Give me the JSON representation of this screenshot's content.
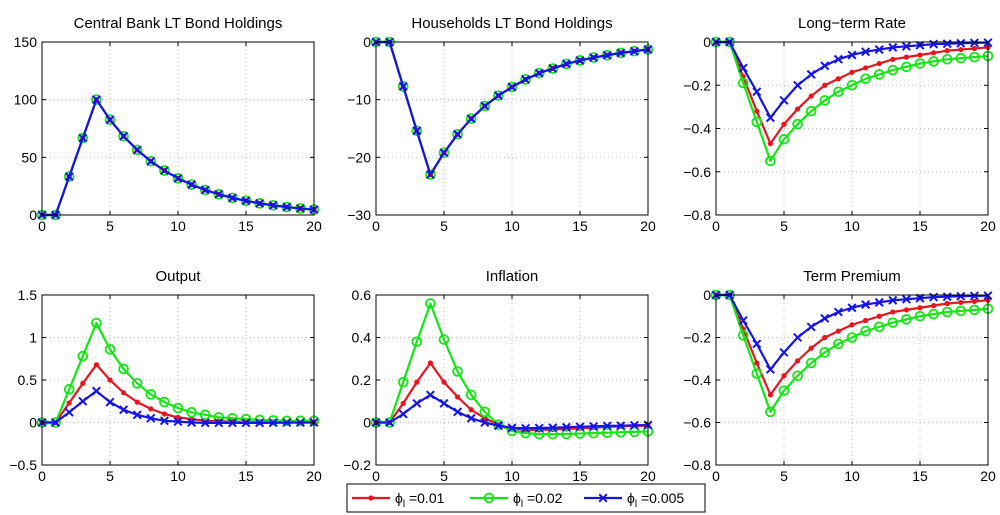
{
  "colors": {
    "series_a": "#e8141e",
    "series_b": "#14e614",
    "series_c": "#1414e6",
    "grid": "#bdbdbd",
    "axis": "#000000",
    "background": "#ffffff"
  },
  "legend": {
    "placement": "bottom-center",
    "entries": [
      {
        "label": "ϕ",
        "subscript": "l",
        "value_text": "=0.01",
        "marker": "dot",
        "color": "#e8141e"
      },
      {
        "label": "ϕ",
        "subscript": "l",
        "value_text": "=0.02",
        "marker": "circle",
        "color": "#14e614"
      },
      {
        "label": "ϕ",
        "subscript": "l",
        "value_text": "=0.005",
        "marker": "x",
        "color": "#1414e6"
      }
    ]
  },
  "chart_data": [
    {
      "type": "line",
      "title": "Central Bank LT Bond Holdings",
      "xlabel": "",
      "ylabel": "",
      "xlim": [
        0,
        20
      ],
      "ylim": [
        0,
        150
      ],
      "grid": true,
      "xticks": [
        0,
        5,
        10,
        15,
        20
      ],
      "yticks": [
        0,
        50,
        100,
        150
      ],
      "yticklabels": [
        "0",
        "50",
        "100",
        "150"
      ],
      "x": [
        0,
        1,
        2,
        3,
        4,
        5,
        6,
        7,
        8,
        9,
        10,
        11,
        12,
        13,
        14,
        15,
        16,
        17,
        18,
        19,
        20
      ],
      "series": [
        {
          "marker": "dot",
          "color": "#e8141e",
          "values": [
            0,
            0,
            33.3,
            66.7,
            100,
            82.6,
            68.3,
            56.4,
            46.6,
            38.5,
            31.8,
            26.3,
            21.7,
            18,
            14.8,
            12.3,
            10.1,
            8.4,
            6.9,
            5.7,
            4.7
          ]
        },
        {
          "marker": "circle",
          "color": "#14e614",
          "values": [
            0,
            0,
            33.3,
            66.7,
            100,
            82.6,
            68.3,
            56.4,
            46.6,
            38.5,
            31.8,
            26.3,
            21.7,
            18,
            14.8,
            12.3,
            10.1,
            8.4,
            6.9,
            5.7,
            4.7
          ]
        },
        {
          "marker": "x",
          "color": "#1414e6",
          "values": [
            0,
            0,
            33.3,
            66.7,
            100,
            82.6,
            68.3,
            56.4,
            46.6,
            38.5,
            31.8,
            26.3,
            21.7,
            18,
            14.8,
            12.3,
            10.1,
            8.4,
            6.9,
            5.7,
            4.7
          ]
        }
      ]
    },
    {
      "type": "line",
      "title": "Households LT Bond Holdings",
      "xlabel": "",
      "ylabel": "",
      "xlim": [
        0,
        20
      ],
      "ylim": [
        -30,
        0
      ],
      "grid": true,
      "xticks": [
        0,
        5,
        10,
        15,
        20
      ],
      "yticks": [
        -30,
        -20,
        -10,
        0
      ],
      "yticklabels": [
        "−30",
        "−20",
        "−10",
        "0"
      ],
      "x": [
        0,
        1,
        2,
        3,
        4,
        5,
        6,
        7,
        8,
        9,
        10,
        11,
        12,
        13,
        14,
        15,
        16,
        17,
        18,
        19,
        20
      ],
      "series": [
        {
          "marker": "dot",
          "color": "#e8141e",
          "values": [
            0,
            0,
            -7.7,
            -15.4,
            -23,
            -19.2,
            -16,
            -13.3,
            -11.1,
            -9.3,
            -7.8,
            -6.5,
            -5.4,
            -4.6,
            -3.8,
            -3.2,
            -2.7,
            -2.3,
            -1.9,
            -1.6,
            -1.3
          ]
        },
        {
          "marker": "circle",
          "color": "#14e614",
          "values": [
            0,
            0,
            -7.7,
            -15.4,
            -23,
            -19.2,
            -16,
            -13.3,
            -11.1,
            -9.3,
            -7.8,
            -6.5,
            -5.4,
            -4.6,
            -3.8,
            -3.2,
            -2.7,
            -2.3,
            -1.9,
            -1.6,
            -1.3
          ]
        },
        {
          "marker": "x",
          "color": "#1414e6",
          "values": [
            0,
            0,
            -7.7,
            -15.4,
            -23,
            -19.2,
            -16,
            -13.3,
            -11.1,
            -9.3,
            -7.8,
            -6.5,
            -5.4,
            -4.6,
            -3.8,
            -3.2,
            -2.7,
            -2.3,
            -1.9,
            -1.6,
            -1.3
          ]
        }
      ]
    },
    {
      "type": "line",
      "title": "Long−term Rate",
      "xlabel": "",
      "ylabel": "",
      "xlim": [
        0,
        20
      ],
      "ylim": [
        -0.8,
        0
      ],
      "grid": true,
      "xticks": [
        0,
        5,
        10,
        15,
        20
      ],
      "yticks": [
        -0.8,
        -0.6,
        -0.4,
        -0.2,
        0
      ],
      "yticklabels": [
        "−0.8",
        "−0.6",
        "−0.4",
        "−0.2",
        "0"
      ],
      "x": [
        0,
        1,
        2,
        3,
        4,
        5,
        6,
        7,
        8,
        9,
        10,
        11,
        12,
        13,
        14,
        15,
        16,
        17,
        18,
        19,
        20
      ],
      "series": [
        {
          "marker": "dot",
          "color": "#e8141e",
          "values": [
            0,
            0,
            -0.16,
            -0.32,
            -0.47,
            -0.38,
            -0.31,
            -0.25,
            -0.2,
            -0.17,
            -0.14,
            -0.12,
            -0.1,
            -0.08,
            -0.07,
            -0.06,
            -0.05,
            -0.04,
            -0.035,
            -0.03,
            -0.025
          ]
        },
        {
          "marker": "circle",
          "color": "#14e614",
          "values": [
            0,
            0,
            -0.19,
            -0.37,
            -0.55,
            -0.45,
            -0.38,
            -0.32,
            -0.27,
            -0.23,
            -0.2,
            -0.17,
            -0.15,
            -0.13,
            -0.115,
            -0.1,
            -0.09,
            -0.08,
            -0.075,
            -0.07,
            -0.065
          ]
        },
        {
          "marker": "x",
          "color": "#1414e6",
          "values": [
            0,
            0,
            -0.12,
            -0.23,
            -0.35,
            -0.27,
            -0.2,
            -0.15,
            -0.11,
            -0.08,
            -0.06,
            -0.045,
            -0.035,
            -0.025,
            -0.02,
            -0.015,
            -0.01,
            -0.008,
            -0.006,
            -0.004,
            -0.003
          ]
        }
      ]
    },
    {
      "type": "line",
      "title": "Output",
      "xlabel": "",
      "ylabel": "",
      "xlim": [
        0,
        20
      ],
      "ylim": [
        -0.5,
        1.5
      ],
      "grid": true,
      "xticks": [
        0,
        5,
        10,
        15,
        20
      ],
      "yticks": [
        -0.5,
        0,
        0.5,
        1,
        1.5
      ],
      "yticklabels": [
        "−0.5",
        "0",
        "0.5",
        "1",
        "1.5"
      ],
      "x": [
        0,
        1,
        2,
        3,
        4,
        5,
        6,
        7,
        8,
        9,
        10,
        11,
        12,
        13,
        14,
        15,
        16,
        17,
        18,
        19,
        20
      ],
      "series": [
        {
          "marker": "dot",
          "color": "#e8141e",
          "values": [
            0,
            0,
            0.23,
            0.46,
            0.68,
            0.5,
            0.35,
            0.24,
            0.16,
            0.1,
            0.06,
            0.04,
            0.02,
            0.015,
            0.01,
            0.005,
            0.003,
            0.002,
            0.001,
            0.001,
            0
          ]
        },
        {
          "marker": "circle",
          "color": "#14e614",
          "values": [
            0,
            0,
            0.39,
            0.78,
            1.17,
            0.86,
            0.63,
            0.46,
            0.33,
            0.24,
            0.17,
            0.12,
            0.09,
            0.06,
            0.05,
            0.04,
            0.03,
            0.025,
            0.02,
            0.02,
            0.02
          ]
        },
        {
          "marker": "x",
          "color": "#1414e6",
          "values": [
            0,
            0,
            0.12,
            0.25,
            0.37,
            0.24,
            0.15,
            0.09,
            0.05,
            0.02,
            0.01,
            0,
            -0.005,
            -0.005,
            -0.005,
            -0.005,
            -0.004,
            -0.003,
            -0.002,
            -0.001,
            0
          ]
        }
      ]
    },
    {
      "type": "line",
      "title": "Inflation",
      "xlabel": "",
      "ylabel": "",
      "xlim": [
        0,
        20
      ],
      "ylim": [
        -0.2,
        0.6
      ],
      "grid": true,
      "xticks": [
        0,
        5,
        10,
        15,
        20
      ],
      "yticks": [
        -0.2,
        0,
        0.2,
        0.4,
        0.6
      ],
      "yticklabels": [
        "−0.2",
        "0",
        "0.2",
        "0.4",
        "0.6"
      ],
      "x": [
        0,
        1,
        2,
        3,
        4,
        5,
        6,
        7,
        8,
        9,
        10,
        11,
        12,
        13,
        14,
        15,
        16,
        17,
        18,
        19,
        20
      ],
      "series": [
        {
          "marker": "dot",
          "color": "#e8141e",
          "values": [
            0,
            0,
            0.09,
            0.19,
            0.28,
            0.19,
            0.12,
            0.06,
            0.02,
            -0.01,
            -0.03,
            -0.035,
            -0.035,
            -0.033,
            -0.03,
            -0.027,
            -0.024,
            -0.021,
            -0.018,
            -0.016,
            -0.015
          ]
        },
        {
          "marker": "circle",
          "color": "#14e614",
          "values": [
            0,
            0,
            0.19,
            0.38,
            0.56,
            0.39,
            0.24,
            0.13,
            0.05,
            -0.01,
            -0.04,
            -0.05,
            -0.055,
            -0.055,
            -0.054,
            -0.052,
            -0.05,
            -0.048,
            -0.046,
            -0.044,
            -0.042
          ]
        },
        {
          "marker": "x",
          "color": "#1414e6",
          "values": [
            0,
            0,
            0.04,
            0.09,
            0.13,
            0.09,
            0.05,
            0.02,
            0,
            -0.015,
            -0.025,
            -0.027,
            -0.026,
            -0.024,
            -0.022,
            -0.02,
            -0.018,
            -0.016,
            -0.015,
            -0.013,
            -0.012
          ]
        }
      ]
    },
    {
      "type": "line",
      "title": "Term Premium",
      "xlabel": "",
      "ylabel": "",
      "xlim": [
        0,
        20
      ],
      "ylim": [
        -0.8,
        0
      ],
      "grid": true,
      "xticks": [
        0,
        5,
        10,
        15,
        20
      ],
      "yticks": [
        -0.8,
        -0.6,
        -0.4,
        -0.2,
        0
      ],
      "yticklabels": [
        "−0.8",
        "−0.6",
        "−0.4",
        "−0.2",
        "0"
      ],
      "x": [
        0,
        1,
        2,
        3,
        4,
        5,
        6,
        7,
        8,
        9,
        10,
        11,
        12,
        13,
        14,
        15,
        16,
        17,
        18,
        19,
        20
      ],
      "series": [
        {
          "marker": "dot",
          "color": "#e8141e",
          "values": [
            0,
            0,
            -0.16,
            -0.32,
            -0.47,
            -0.38,
            -0.31,
            -0.25,
            -0.2,
            -0.17,
            -0.14,
            -0.12,
            -0.1,
            -0.08,
            -0.07,
            -0.06,
            -0.05,
            -0.04,
            -0.035,
            -0.03,
            -0.025
          ]
        },
        {
          "marker": "circle",
          "color": "#14e614",
          "values": [
            0,
            0,
            -0.19,
            -0.37,
            -0.55,
            -0.45,
            -0.38,
            -0.32,
            -0.27,
            -0.23,
            -0.2,
            -0.17,
            -0.15,
            -0.13,
            -0.115,
            -0.1,
            -0.09,
            -0.08,
            -0.075,
            -0.07,
            -0.065
          ]
        },
        {
          "marker": "x",
          "color": "#1414e6",
          "values": [
            0,
            0,
            -0.12,
            -0.23,
            -0.35,
            -0.27,
            -0.2,
            -0.15,
            -0.11,
            -0.08,
            -0.06,
            -0.045,
            -0.035,
            -0.025,
            -0.02,
            -0.015,
            -0.01,
            -0.008,
            -0.006,
            -0.004,
            -0.003
          ]
        }
      ]
    }
  ]
}
